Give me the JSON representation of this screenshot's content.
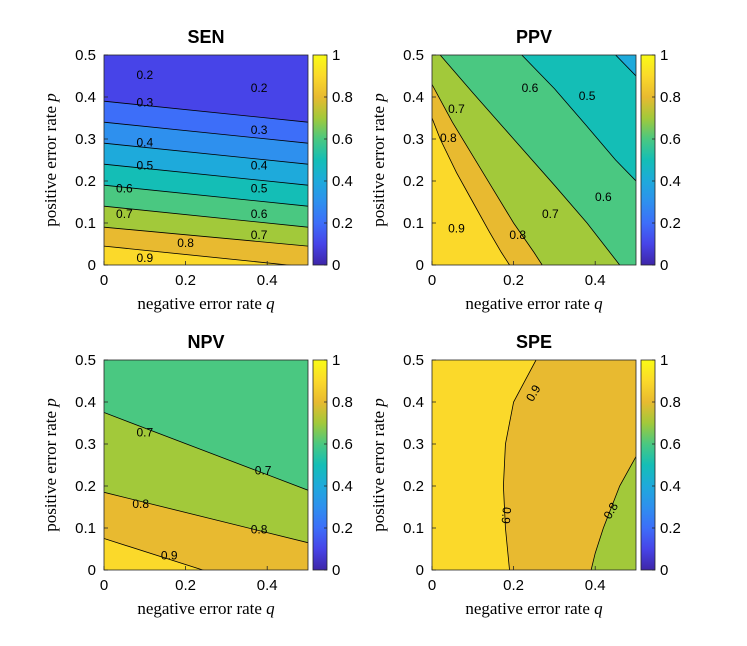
{
  "colors": {
    "0.0": "#3e26a8",
    "0.1": "#4744e8",
    "0.2": "#3d6ef9",
    "0.3": "#2e90ee",
    "0.4": "#1eaadb",
    "0.5": "#14beb6",
    "0.6": "#4ac881",
    "0.7": "#a2c93a",
    "0.8": "#e8ba30",
    "0.9": "#fbd92a",
    "1.0": "#f9fb15"
  },
  "colorbar": {
    "ticks": [
      "0",
      "0.2",
      "0.4",
      "0.6",
      "0.8",
      "1"
    ]
  },
  "chart_data": [
    {
      "type": "contour",
      "title": "SEN",
      "xlabel": "negative error rate",
      "xlabel_var": "q",
      "ylabel": "positive error rate",
      "ylabel_var": "p",
      "xlim": [
        0,
        0.5
      ],
      "ylim": [
        0,
        0.5
      ],
      "xticks": [
        "0",
        "0.2",
        "0.4"
      ],
      "yticks": [
        "0",
        "0.1",
        "0.2",
        "0.3",
        "0.4",
        "0.5"
      ],
      "contours": [
        {
          "level": 0.9,
          "p_at_q0": 0.045,
          "p_at_q05": -0.005
        },
        {
          "level": 0.8,
          "p_at_q0": 0.09,
          "p_at_q05": 0.045
        },
        {
          "level": 0.7,
          "p_at_q0": 0.14,
          "p_at_q05": 0.09
        },
        {
          "level": 0.6,
          "p_at_q0": 0.19,
          "p_at_q05": 0.14
        },
        {
          "level": 0.5,
          "p_at_q0": 0.24,
          "p_at_q05": 0.19
        },
        {
          "level": 0.4,
          "p_at_q0": 0.29,
          "p_at_q05": 0.24
        },
        {
          "level": 0.3,
          "p_at_q0": 0.34,
          "p_at_q05": 0.29
        },
        {
          "level": 0.2,
          "p_at_q0": 0.39,
          "p_at_q05": 0.34
        }
      ],
      "top_region_level": 0.1,
      "labels": [
        {
          "text": "0.2",
          "q": 0.1,
          "p": 0.45
        },
        {
          "text": "0.2",
          "q": 0.38,
          "p": 0.42
        },
        {
          "text": "0.3",
          "q": 0.1,
          "p": 0.385
        },
        {
          "text": "0.3",
          "q": 0.38,
          "p": 0.32
        },
        {
          "text": "0.4",
          "q": 0.1,
          "p": 0.29
        },
        {
          "text": "0.4",
          "q": 0.38,
          "p": 0.235
        },
        {
          "text": "0.5",
          "q": 0.1,
          "p": 0.235
        },
        {
          "text": "0.5",
          "q": 0.38,
          "p": 0.18
        },
        {
          "text": "0.6",
          "q": 0.05,
          "p": 0.18
        },
        {
          "text": "0.6",
          "q": 0.38,
          "p": 0.12
        },
        {
          "text": "0.7",
          "q": 0.05,
          "p": 0.12
        },
        {
          "text": "0.7",
          "q": 0.38,
          "p": 0.07
        },
        {
          "text": "0.8",
          "q": 0.2,
          "p": 0.05
        },
        {
          "text": "0.9",
          "q": 0.1,
          "p": 0.015
        }
      ]
    },
    {
      "type": "contour",
      "title": "PPV",
      "xlabel": "negative error rate",
      "xlabel_var": "q",
      "ylabel": "positive error rate",
      "ylabel_var": "p",
      "xlim": [
        0,
        0.5
      ],
      "ylim": [
        0,
        0.5
      ],
      "xticks": [
        "0",
        "0.2",
        "0.4"
      ],
      "yticks": [
        "0",
        "0.1",
        "0.2",
        "0.3",
        "0.4",
        "0.5"
      ],
      "regions": [
        {
          "level": 0.9,
          "boundary": [
            [
              0,
              0.35
            ],
            [
              0.02,
              0.3
            ],
            [
              0.06,
              0.22
            ],
            [
              0.1,
              0.15
            ],
            [
              0.14,
              0.08
            ],
            [
              0.17,
              0.03
            ],
            [
              0.19,
              0
            ]
          ]
        },
        {
          "level": 0.8,
          "boundary": [
            [
              0,
              0.43
            ],
            [
              0.05,
              0.34
            ],
            [
              0.1,
              0.26
            ],
            [
              0.15,
              0.18
            ],
            [
              0.2,
              0.1
            ],
            [
              0.25,
              0.03
            ],
            [
              0.27,
              0
            ]
          ]
        },
        {
          "level": 0.7,
          "boundary": [
            [
              0.02,
              0.5
            ],
            [
              0.1,
              0.41
            ],
            [
              0.2,
              0.3
            ],
            [
              0.3,
              0.19
            ],
            [
              0.38,
              0.1
            ],
            [
              0.46,
              0
            ]
          ]
        },
        {
          "level": 0.6,
          "boundary": [
            [
              0.22,
              0.5
            ],
            [
              0.3,
              0.42
            ],
            [
              0.38,
              0.33
            ],
            [
              0.45,
              0.25
            ],
            [
              0.5,
              0.2
            ]
          ]
        },
        {
          "level": 0.5,
          "boundary": [
            [
              0.45,
              0.5
            ],
            [
              0.5,
              0.45
            ]
          ]
        }
      ],
      "labels": [
        {
          "text": "0.9",
          "q": 0.06,
          "p": 0.085
        },
        {
          "text": "0.8",
          "q": 0.04,
          "p": 0.3
        },
        {
          "text": "0.8",
          "q": 0.21,
          "p": 0.07
        },
        {
          "text": "0.7",
          "q": 0.06,
          "p": 0.37
        },
        {
          "text": "0.7",
          "q": 0.29,
          "p": 0.12
        },
        {
          "text": "0.6",
          "q": 0.24,
          "p": 0.42
        },
        {
          "text": "0.6",
          "q": 0.42,
          "p": 0.16
        },
        {
          "text": "0.5",
          "q": 0.38,
          "p": 0.4
        }
      ]
    },
    {
      "type": "contour",
      "title": "NPV",
      "xlabel": "negative error rate",
      "xlabel_var": "q",
      "ylabel": "positive error rate",
      "ylabel_var": "p",
      "xlim": [
        0,
        0.5
      ],
      "ylim": [
        0,
        0.5
      ],
      "xticks": [
        "0",
        "0.2",
        "0.4"
      ],
      "yticks": [
        "0",
        "0.1",
        "0.2",
        "0.3",
        "0.4",
        "0.5"
      ],
      "contours": [
        {
          "level": 0.9,
          "p_at_q0": 0.075,
          "p_at_q05": -0.08
        },
        {
          "level": 0.8,
          "p_at_q0": 0.185,
          "p_at_q05": 0.065
        },
        {
          "level": 0.7,
          "p_at_q0": 0.375,
          "p_at_q05": 0.19
        }
      ],
      "top_region_level": 0.6,
      "labels": [
        {
          "text": "0.7",
          "q": 0.1,
          "p": 0.325
        },
        {
          "text": "0.7",
          "q": 0.39,
          "p": 0.235
        },
        {
          "text": "0.8",
          "q": 0.09,
          "p": 0.155
        },
        {
          "text": "0.8",
          "q": 0.38,
          "p": 0.095
        },
        {
          "text": "0.9",
          "q": 0.16,
          "p": 0.033
        }
      ]
    },
    {
      "type": "contour",
      "title": "SPE",
      "xlabel": "negative error rate",
      "xlabel_var": "q",
      "ylabel": "positive error rate",
      "ylabel_var": "p",
      "xlim": [
        0,
        0.5
      ],
      "ylim": [
        0,
        0.5
      ],
      "xticks": [
        "0",
        "0.2",
        "0.4"
      ],
      "yticks": [
        "0",
        "0.1",
        "0.2",
        "0.3",
        "0.4",
        "0.5"
      ],
      "regions": [
        {
          "level": 0.9,
          "boundary": [
            [
              0.255,
              0.5
            ],
            [
              0.2,
              0.4
            ],
            [
              0.18,
              0.3
            ],
            [
              0.175,
              0.2
            ],
            [
              0.18,
              0.1
            ],
            [
              0.19,
              0
            ]
          ]
        },
        {
          "level": 0.8,
          "boundary": [
            [
              0.5,
              0.27
            ],
            [
              0.46,
              0.2
            ],
            [
              0.42,
              0.1
            ],
            [
              0.4,
              0.04
            ],
            [
              0.39,
              0
            ]
          ]
        }
      ],
      "labels": [
        {
          "text": "0.9",
          "q": 0.25,
          "p": 0.42,
          "rotate": -60
        },
        {
          "text": "0.9",
          "q": 0.18,
          "p": 0.13,
          "rotate": 95
        },
        {
          "text": "0.8",
          "q": 0.44,
          "p": 0.14,
          "rotate": -60
        }
      ]
    }
  ]
}
